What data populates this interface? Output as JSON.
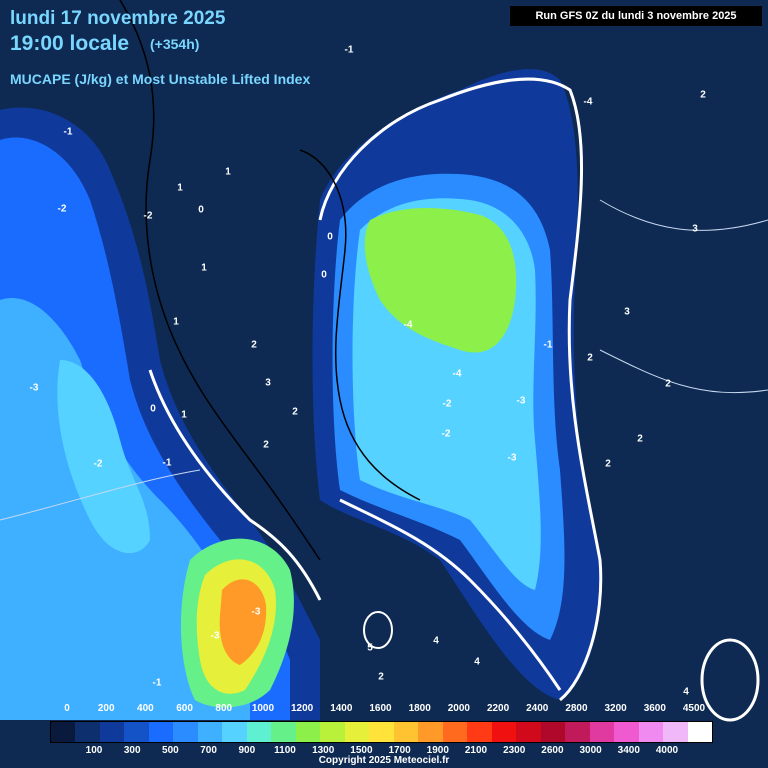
{
  "header": {
    "date": "lundi 17 novembre 2025",
    "time": "19:00 locale",
    "lead": "(+354h)",
    "parameter": "MUCAPE (J/kg) et Most Unstable Lifted Index",
    "run": "Run GFS 0Z du lundi 3 novembre 2025"
  },
  "legend": {
    "top_ticks": [
      "0",
      "200",
      "400",
      "600",
      "800",
      "1000",
      "1200",
      "1400",
      "1600",
      "1800",
      "2000",
      "2200",
      "2400",
      "2800",
      "3200",
      "3600",
      "4500"
    ],
    "bottom_ticks": [
      "100",
      "300",
      "500",
      "700",
      "900",
      "1100",
      "1300",
      "1500",
      "1700",
      "1900",
      "2100",
      "2300",
      "2600",
      "3000",
      "3400",
      "4000"
    ],
    "colors": [
      "#0a1a3d",
      "#0e2f6e",
      "#0f3a9c",
      "#1452c8",
      "#1a6cff",
      "#2b8cff",
      "#3fb0ff",
      "#55d2ff",
      "#5ef0d0",
      "#66f08a",
      "#8df04a",
      "#b8f03a",
      "#e6f03a",
      "#ffe23a",
      "#ffc230",
      "#ff9a28",
      "#ff6a1e",
      "#ff3a14",
      "#f01010",
      "#d00a1a",
      "#b0082a",
      "#c01a5a",
      "#e03aa0",
      "#f05ad0",
      "#f08af0",
      "#f0b8f8",
      "#ffffff"
    ]
  },
  "li_labels": [
    "-1",
    "-2",
    "-2",
    "-3",
    "-2",
    "-1",
    "-3",
    "-2",
    "-1",
    "-4",
    "-4",
    "-3",
    "-2",
    "-3",
    "-3",
    "-4",
    "-1",
    "-1",
    "0",
    "0",
    "0",
    "0",
    "1",
    "1",
    "1",
    "1",
    "1",
    "2",
    "2",
    "2",
    "2",
    "2",
    "2",
    "3",
    "3",
    "3",
    "4",
    "4",
    "4",
    "5",
    "2",
    "2",
    "2"
  ],
  "copyright": "Copyright 2025 Meteociel.fr"
}
